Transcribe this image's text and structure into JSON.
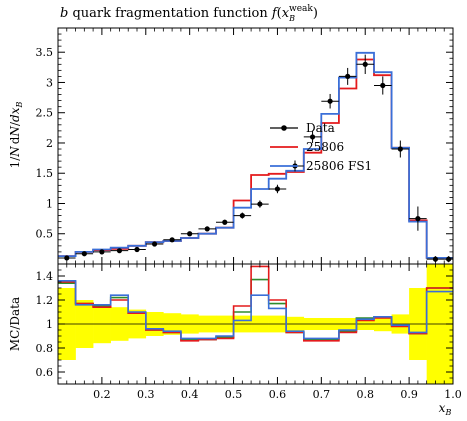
{
  "chart_data": [
    {
      "type": "line",
      "panel": "main",
      "title": "b quark fragmentation function f(x_B^weak)",
      "title_parts": {
        "prefix": "b",
        "text": " quark fragmentation function ",
        "f": "f",
        "open": "(",
        "x": "x",
        "sub": "B",
        "sup": "weak",
        "close": ")"
      },
      "xlabel": "x_B",
      "xlabel_parts": {
        "x": "x",
        "sub": "B"
      },
      "ylabel": "1/N dN/dx_B",
      "ylabel_parts": {
        "pre": "1/",
        "N": "N",
        "d1": "d",
        "N2": "N",
        "slash": "/",
        "d2": "dx",
        "sub": "B"
      },
      "xlim": [
        0.1,
        1.0
      ],
      "ylim": [
        0,
        3.9
      ],
      "y_ticks": [
        "0.5",
        "1",
        "1.5",
        "2",
        "2.5",
        "3",
        "3.5"
      ],
      "y_tick_values": [
        0.5,
        1,
        1.5,
        2,
        2.5,
        3,
        3.5
      ],
      "legend_position": "center-right",
      "bin_edges": [
        0.1,
        0.14,
        0.18,
        0.22,
        0.26,
        0.3,
        0.34,
        0.38,
        0.42,
        0.46,
        0.5,
        0.54,
        0.58,
        0.62,
        0.66,
        0.7,
        0.74,
        0.78,
        0.82,
        0.86,
        0.9,
        0.94,
        0.98,
        1.0
      ],
      "data": {
        "name": "Data",
        "x": [
          0.12,
          0.16,
          0.2,
          0.24,
          0.28,
          0.32,
          0.36,
          0.4,
          0.44,
          0.48,
          0.52,
          0.56,
          0.6,
          0.64,
          0.68,
          0.72,
          0.76,
          0.8,
          0.84,
          0.88,
          0.92,
          0.96,
          0.99
        ],
        "y": [
          0.1,
          0.17,
          0.2,
          0.22,
          0.24,
          0.33,
          0.4,
          0.5,
          0.58,
          0.69,
          0.8,
          0.99,
          1.24,
          1.62,
          2.1,
          2.69,
          3.1,
          3.3,
          2.95,
          1.9,
          0.75,
          0.08,
          0.08
        ],
        "yerr": [
          0.03,
          0.03,
          0.03,
          0.03,
          0.03,
          0.03,
          0.03,
          0.03,
          0.04,
          0.04,
          0.05,
          0.06,
          0.07,
          0.09,
          0.1,
          0.12,
          0.14,
          0.16,
          0.15,
          0.14,
          0.2,
          0.05,
          0.05
        ]
      },
      "series": [
        {
          "name": "25806",
          "color": "#e41a1c",
          "values": [
            0.13,
            0.2,
            0.23,
            0.25,
            0.3,
            0.36,
            0.38,
            0.43,
            0.5,
            0.6,
            1.05,
            1.47,
            1.49,
            1.52,
            1.84,
            2.33,
            2.9,
            3.38,
            3.12,
            1.92,
            0.72,
            0.1,
            0.1
          ]
        },
        {
          "name": "25806 FS1",
          "color": "#3a6fd8",
          "values": [
            0.13,
            0.2,
            0.24,
            0.27,
            0.3,
            0.36,
            0.38,
            0.43,
            0.5,
            0.6,
            0.93,
            1.24,
            1.41,
            1.54,
            1.9,
            2.48,
            3.08,
            3.49,
            3.17,
            1.92,
            0.7,
            0.1,
            0.1
          ]
        }
      ]
    },
    {
      "type": "line",
      "panel": "ratio",
      "ylabel": "MC/Data",
      "xlim": [
        0.1,
        1.0
      ],
      "ylim": [
        0.5,
        1.5
      ],
      "x_ticks": [
        "0.2",
        "0.3",
        "0.4",
        "0.5",
        "0.6",
        "0.7",
        "0.8",
        "0.9",
        "1.0"
      ],
      "x_tick_values": [
        0.2,
        0.3,
        0.4,
        0.5,
        0.6,
        0.7,
        0.8,
        0.9,
        1.0
      ],
      "y_ticks": [
        "0.6",
        "0.8",
        "1",
        "1.2",
        "1.4"
      ],
      "y_tick_values": [
        0.6,
        0.8,
        1.0,
        1.2,
        1.4
      ],
      "band_color": "#ffff00",
      "reference_line": 1.0,
      "band_halfwidth": [
        0.3,
        0.2,
        0.16,
        0.14,
        0.12,
        0.1,
        0.09,
        0.08,
        0.07,
        0.07,
        0.07,
        0.07,
        0.07,
        0.06,
        0.05,
        0.05,
        0.05,
        0.05,
        0.06,
        0.08,
        0.3,
        0.6,
        0.6
      ],
      "series": [
        {
          "name": "25806",
          "color": "#e41a1c",
          "values": [
            1.35,
            1.17,
            1.14,
            1.2,
            1.09,
            0.95,
            0.93,
            0.86,
            0.87,
            0.88,
            1.15,
            1.48,
            1.2,
            0.93,
            0.86,
            0.86,
            0.93,
            1.03,
            1.05,
            0.98,
            0.92,
            1.3,
            1.3
          ]
        },
        {
          "name": "25806 FS1",
          "color": "#3a6fd8",
          "values": [
            1.36,
            1.16,
            1.16,
            1.24,
            1.1,
            0.96,
            0.94,
            0.88,
            0.88,
            0.9,
            1.03,
            1.24,
            1.13,
            0.94,
            0.88,
            0.88,
            0.95,
            1.04,
            1.06,
            0.99,
            0.93,
            1.27,
            1.27
          ]
        },
        {
          "name": "Data",
          "color": "#2e8b2e",
          "values": [
            1.34,
            1.17,
            1.15,
            1.22,
            1.09,
            0.95,
            0.93,
            0.87,
            0.87,
            0.89,
            1.1,
            1.37,
            1.17,
            0.93,
            0.87,
            0.87,
            0.94,
            1.05,
            1.06,
            0.99,
            0.92,
            1.3,
            1.3
          ]
        }
      ]
    }
  ]
}
